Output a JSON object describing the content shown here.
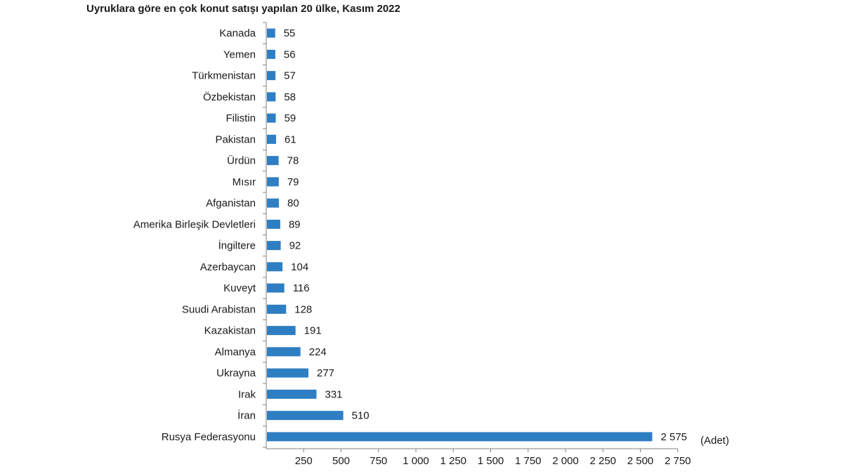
{
  "chart_data": {
    "type": "bar",
    "orientation": "horizontal",
    "title": "Uyruklara göre en çok konut satışı yapılan 20 ülke, Kasım 2022",
    "unit_label": "(Adet)",
    "bar_color": "#2e7ec3",
    "axis_color": "#808080",
    "categories": [
      "Kanada",
      "Yemen",
      "Türkmenistan",
      "Özbekistan",
      "Filistin",
      "Pakistan",
      "Ürdün",
      "Mısır",
      "Afganistan",
      "Amerika Birleşik Devletleri",
      "İngiltere",
      "Azerbaycan",
      "Kuveyt",
      "Suudi Arabistan",
      "Kazakistan",
      "Almanya",
      "Ukrayna",
      "Irak",
      "İran",
      "Rusya Federasyonu"
    ],
    "values": [
      55,
      56,
      57,
      58,
      59,
      61,
      78,
      79,
      80,
      89,
      92,
      104,
      116,
      128,
      191,
      224,
      277,
      331,
      510,
      2575
    ],
    "value_labels": [
      "55",
      "56",
      "57",
      "58",
      "59",
      "61",
      "78",
      "79",
      "80",
      "89",
      "92",
      "104",
      "116",
      "128",
      "191",
      "224",
      "277",
      "331",
      "510",
      "2 575"
    ],
    "xlim": [
      0,
      2750
    ],
    "xticks": [
      250,
      500,
      750,
      1000,
      1250,
      1500,
      1750,
      2000,
      2250,
      2500,
      2750
    ],
    "xtick_labels": [
      "250",
      "500",
      "750",
      "1 000",
      "1 250",
      "1 500",
      "1 750",
      "2 000",
      "2 250",
      "2 500",
      "2 750"
    ],
    "grid": false,
    "legend": "none"
  }
}
